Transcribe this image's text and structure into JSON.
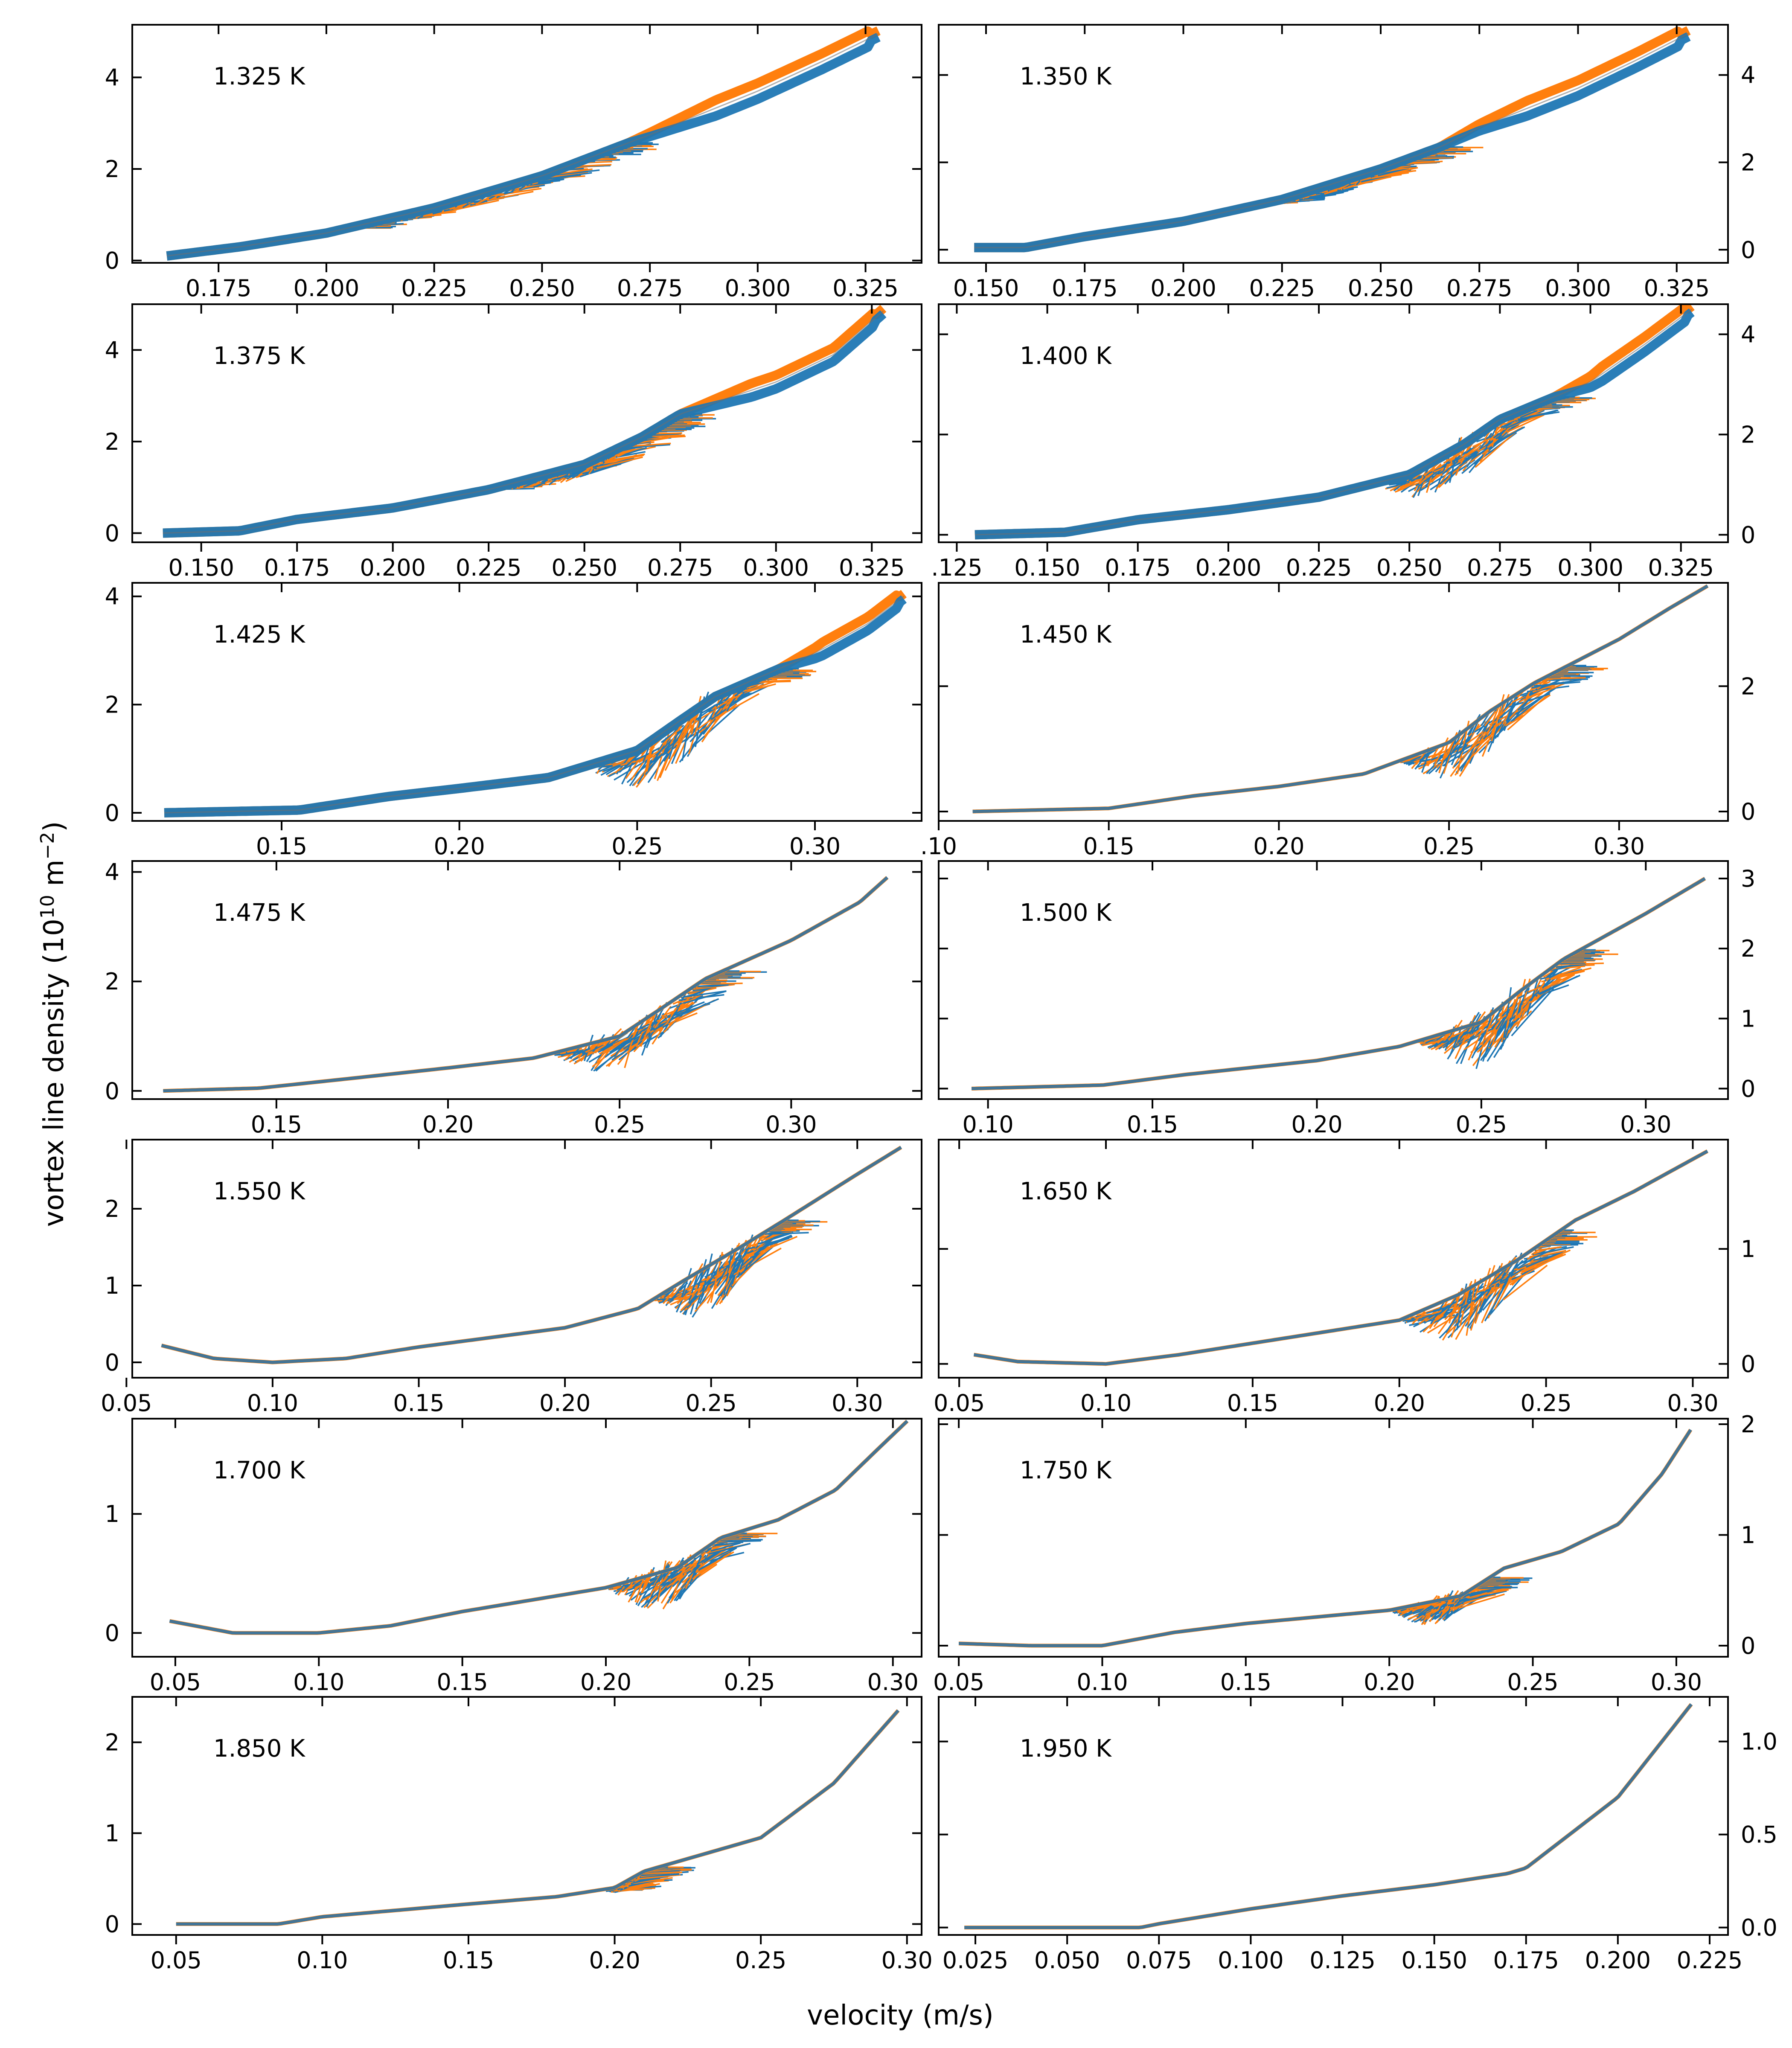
{
  "chart_data": {
    "type": "line",
    "xlabel": "velocity (m/s)",
    "ylabel_prefix": "vortex line density (10",
    "ylabel_exp": "10",
    "ylabel_unit": " m",
    "ylabel_unit_exp": "−2",
    "ylabel_suffix": ")",
    "series_colors": {
      "blue": "#1f77b4",
      "orange": "#ff7f0e"
    },
    "panels": [
      {
        "label": "1.325 K",
        "xlim": [
          0.155,
          0.338
        ],
        "ylim": [
          -0.05,
          5.15
        ],
        "xticks": [
          0.175,
          0.2,
          0.225,
          0.25,
          0.275,
          0.3,
          0.325
        ],
        "xtick_labels": [
          "0.175",
          "0.200",
          "0.225",
          "0.250",
          "0.275",
          "0.300",
          "0.325"
        ],
        "yticks": [
          0,
          2,
          4
        ],
        "ytick_labels": [
          "0",
          "2",
          "4"
        ],
        "curve": [
          [
            0.163,
            0.1
          ],
          [
            0.18,
            0.3
          ],
          [
            0.2,
            0.6
          ],
          [
            0.225,
            1.15
          ],
          [
            0.25,
            1.85
          ],
          [
            0.275,
            2.75
          ],
          [
            0.3,
            3.7
          ],
          [
            0.315,
            4.35
          ],
          [
            0.328,
            4.95
          ]
        ],
        "band_from": 0.205,
        "band_to": 0.27,
        "band_width": 0.28,
        "split_from": 0.27,
        "split": 0.35
      },
      {
        "label": "1.350 K",
        "xlim": [
          0.138,
          0.338
        ],
        "ylim": [
          -0.3,
          5.15
        ],
        "xticks": [
          0.15,
          0.175,
          0.2,
          0.225,
          0.25,
          0.275,
          0.3,
          0.325
        ],
        "xtick_labels": [
          "0.150",
          "0.175",
          "0.200",
          "0.225",
          "0.250",
          "0.275",
          "0.300",
          "0.325"
        ],
        "yticks": [
          0,
          2,
          4
        ],
        "ytick_labels": [
          "0",
          "2",
          "4"
        ],
        "curve": [
          [
            0.147,
            0.05
          ],
          [
            0.16,
            0.05
          ],
          [
            0.175,
            0.3
          ],
          [
            0.2,
            0.65
          ],
          [
            0.225,
            1.15
          ],
          [
            0.25,
            1.85
          ],
          [
            0.265,
            2.35
          ],
          [
            0.275,
            2.8
          ],
          [
            0.3,
            3.7
          ],
          [
            0.315,
            4.35
          ],
          [
            0.328,
            4.95
          ]
        ],
        "band_from": 0.22,
        "band_to": 0.265,
        "band_width": 0.3,
        "split_from": 0.265,
        "split": 0.35
      },
      {
        "label": "1.375 K",
        "xlim": [
          0.132,
          0.338
        ],
        "ylim": [
          -0.2,
          5.0
        ],
        "xticks": [
          0.15,
          0.175,
          0.2,
          0.225,
          0.25,
          0.275,
          0.3,
          0.325
        ],
        "xtick_labels": [
          "0.150",
          "0.175",
          "0.200",
          "0.225",
          "0.250",
          "0.275",
          "0.300",
          "0.325"
        ],
        "yticks": [
          0,
          2,
          4
        ],
        "ytick_labels": [
          "0",
          "2",
          "4"
        ],
        "curve": [
          [
            0.14,
            0.0
          ],
          [
            0.16,
            0.05
          ],
          [
            0.175,
            0.3
          ],
          [
            0.2,
            0.55
          ],
          [
            0.225,
            0.95
          ],
          [
            0.25,
            1.5
          ],
          [
            0.265,
            2.1
          ],
          [
            0.275,
            2.6
          ],
          [
            0.3,
            3.3
          ],
          [
            0.315,
            3.9
          ],
          [
            0.328,
            4.85
          ]
        ],
        "band_from": 0.225,
        "band_to": 0.275,
        "band_width": 0.4,
        "split_from": 0.275,
        "split": 0.3
      },
      {
        "label": "1.400 K",
        "xlim": [
          0.12,
          0.338
        ],
        "ylim": [
          -0.15,
          4.6
        ],
        "xticks": [
          0.125,
          0.15,
          0.175,
          0.2,
          0.225,
          0.25,
          0.275,
          0.3,
          0.325
        ],
        "xtick_labels": [
          ".125",
          "0.150",
          "0.175",
          "0.200",
          "0.225",
          "0.250",
          "0.275",
          "0.300",
          "0.325"
        ],
        "yticks": [
          0,
          2,
          4
        ],
        "ytick_labels": [
          "0",
          "2",
          "4"
        ],
        "curve": [
          [
            0.13,
            0.0
          ],
          [
            0.155,
            0.05
          ],
          [
            0.175,
            0.3
          ],
          [
            0.2,
            0.5
          ],
          [
            0.225,
            0.75
          ],
          [
            0.25,
            1.2
          ],
          [
            0.265,
            1.8
          ],
          [
            0.275,
            2.3
          ],
          [
            0.3,
            3.05
          ],
          [
            0.315,
            3.8
          ],
          [
            0.328,
            4.5
          ]
        ],
        "band_from": 0.24,
        "band_to": 0.29,
        "band_width": 1.0,
        "split_from": 0.29,
        "split": 0.3
      },
      {
        "label": "1.425 K",
        "xlim": [
          0.108,
          0.33
        ],
        "ylim": [
          -0.15,
          4.25
        ],
        "xticks": [
          0.15,
          0.2,
          0.25,
          0.3
        ],
        "xtick_labels": [
          "0.15",
          "0.20",
          "0.25",
          "0.30"
        ],
        "yticks": [
          0,
          2,
          4
        ],
        "ytick_labels": [
          "0",
          "2",
          "4"
        ],
        "curve": [
          [
            0.117,
            0.0
          ],
          [
            0.155,
            0.05
          ],
          [
            0.18,
            0.3
          ],
          [
            0.2,
            0.45
          ],
          [
            0.225,
            0.65
          ],
          [
            0.25,
            1.15
          ],
          [
            0.262,
            1.7
          ],
          [
            0.272,
            2.15
          ],
          [
            0.3,
            2.95
          ],
          [
            0.315,
            3.5
          ],
          [
            0.325,
            4.0
          ]
        ],
        "band_from": 0.235,
        "band_to": 0.29,
        "band_width": 1.2,
        "split_from": 0.29,
        "split": 0.25
      },
      {
        "label": "1.450 K",
        "xlim": [
          0.1,
          0.332
        ],
        "ylim": [
          -0.15,
          3.65
        ],
        "xticks": [
          0.1,
          0.15,
          0.2,
          0.25,
          0.3
        ],
        "xtick_labels": [
          ".10",
          "0.15",
          "0.20",
          "0.25",
          "0.30"
        ],
        "yticks": [
          0,
          2
        ],
        "ytick_labels": [
          "0",
          "2"
        ],
        "curve": [
          [
            0.11,
            0.0
          ],
          [
            0.15,
            0.05
          ],
          [
            0.175,
            0.25
          ],
          [
            0.2,
            0.4
          ],
          [
            0.225,
            0.6
          ],
          [
            0.25,
            1.1
          ],
          [
            0.262,
            1.6
          ],
          [
            0.275,
            2.05
          ],
          [
            0.3,
            2.75
          ],
          [
            0.315,
            3.25
          ],
          [
            0.326,
            3.6
          ]
        ],
        "band_from": 0.235,
        "band_to": 0.285,
        "band_width": 1.0,
        "split_from": 0,
        "split": 0
      },
      {
        "label": "1.475 K",
        "xlim": [
          0.108,
          0.338
        ],
        "ylim": [
          -0.15,
          4.2
        ],
        "xticks": [
          0.15,
          0.2,
          0.25,
          0.3
        ],
        "xtick_labels": [
          "0.15",
          "0.20",
          "0.25",
          "0.30"
        ],
        "yticks": [
          0,
          2,
          4
        ],
        "ytick_labels": [
          "0",
          "2",
          "4"
        ],
        "curve": [
          [
            0.117,
            0.0
          ],
          [
            0.145,
            0.05
          ],
          [
            0.175,
            0.25
          ],
          [
            0.2,
            0.42
          ],
          [
            0.225,
            0.6
          ],
          [
            0.25,
            1.0
          ],
          [
            0.262,
            1.5
          ],
          [
            0.275,
            2.05
          ],
          [
            0.3,
            2.75
          ],
          [
            0.32,
            3.45
          ],
          [
            0.328,
            3.9
          ]
        ],
        "band_from": 0.23,
        "band_to": 0.28,
        "band_width": 1.0,
        "split_from": 0,
        "split": 0
      },
      {
        "label": "1.500 K",
        "xlim": [
          0.085,
          0.325
        ],
        "ylim": [
          -0.15,
          3.25
        ],
        "xticks": [
          0.1,
          0.15,
          0.2,
          0.25,
          0.3
        ],
        "xtick_labels": [
          "0.10",
          "0.15",
          "0.20",
          "0.25",
          "0.30"
        ],
        "yticks": [
          0,
          1,
          2,
          3
        ],
        "ytick_labels": [
          "0",
          "1",
          "2",
          "3"
        ],
        "curve": [
          [
            0.095,
            0.0
          ],
          [
            0.135,
            0.05
          ],
          [
            0.16,
            0.2
          ],
          [
            0.2,
            0.4
          ],
          [
            0.225,
            0.6
          ],
          [
            0.25,
            0.95
          ],
          [
            0.262,
            1.4
          ],
          [
            0.275,
            1.85
          ],
          [
            0.3,
            2.5
          ],
          [
            0.318,
            3.0
          ]
        ],
        "band_from": 0.23,
        "band_to": 0.28,
        "band_width": 0.95,
        "split_from": 0,
        "split": 0
      },
      {
        "label": "1.550 K",
        "xlim": [
          0.052,
          0.322
        ],
        "ylim": [
          -0.2,
          2.9
        ],
        "xticks": [
          0.05,
          0.1,
          0.15,
          0.2,
          0.25,
          0.3
        ],
        "xtick_labels": [
          "0.05",
          "0.10",
          "0.15",
          "0.20",
          "0.25",
          "0.30"
        ],
        "yticks": [
          0,
          1,
          2
        ],
        "ytick_labels": [
          "0",
          "1",
          "2"
        ],
        "curve": [
          [
            0.062,
            0.22
          ],
          [
            0.08,
            0.05
          ],
          [
            0.1,
            0.0
          ],
          [
            0.125,
            0.05
          ],
          [
            0.15,
            0.2
          ],
          [
            0.2,
            0.45
          ],
          [
            0.225,
            0.7
          ],
          [
            0.24,
            1.05
          ],
          [
            0.26,
            1.5
          ],
          [
            0.275,
            1.85
          ],
          [
            0.3,
            2.45
          ],
          [
            0.315,
            2.8
          ]
        ],
        "band_from": 0.23,
        "band_to": 0.275,
        "band_width": 0.9,
        "split_from": 0,
        "split": 0
      },
      {
        "label": "1.650 K",
        "xlim": [
          0.043,
          0.312
        ],
        "ylim": [
          -0.12,
          1.95
        ],
        "xticks": [
          0.05,
          0.1,
          0.15,
          0.2,
          0.25,
          0.3
        ],
        "xtick_labels": [
          "0.05",
          "0.10",
          "0.15",
          "0.20",
          "0.25",
          "0.30"
        ],
        "yticks": [
          0,
          1
        ],
        "ytick_labels": [
          "0",
          "1"
        ],
        "curve": [
          [
            0.055,
            0.08
          ],
          [
            0.07,
            0.02
          ],
          [
            0.1,
            0.0
          ],
          [
            0.125,
            0.08
          ],
          [
            0.15,
            0.18
          ],
          [
            0.2,
            0.38
          ],
          [
            0.22,
            0.6
          ],
          [
            0.24,
            0.9
          ],
          [
            0.26,
            1.25
          ],
          [
            0.28,
            1.5
          ],
          [
            0.305,
            1.85
          ]
        ],
        "band_from": 0.2,
        "band_to": 0.255,
        "band_width": 0.6,
        "split_from": 0,
        "split": 0
      },
      {
        "label": "1.700 K",
        "xlim": [
          0.035,
          0.31
        ],
        "ylim": [
          -0.2,
          1.8
        ],
        "xticks": [
          0.05,
          0.1,
          0.15,
          0.2,
          0.25,
          0.3
        ],
        "xtick_labels": [
          "0.05",
          "0.10",
          "0.15",
          "0.20",
          "0.25",
          "0.30"
        ],
        "yticks": [
          0,
          1
        ],
        "ytick_labels": [
          "0",
          "1"
        ],
        "curve": [
          [
            0.048,
            0.1
          ],
          [
            0.07,
            0.0
          ],
          [
            0.1,
            0.0
          ],
          [
            0.125,
            0.06
          ],
          [
            0.15,
            0.18
          ],
          [
            0.2,
            0.38
          ],
          [
            0.225,
            0.55
          ],
          [
            0.24,
            0.8
          ],
          [
            0.26,
            0.95
          ],
          [
            0.28,
            1.2
          ],
          [
            0.295,
            1.55
          ],
          [
            0.305,
            1.78
          ]
        ],
        "band_from": 0.2,
        "band_to": 0.245,
        "band_width": 0.45,
        "split_from": 0,
        "split": 0
      },
      {
        "label": "1.750 K",
        "xlim": [
          0.043,
          0.318
        ],
        "ylim": [
          -0.1,
          2.05
        ],
        "xticks": [
          0.05,
          0.1,
          0.15,
          0.2,
          0.25,
          0.3
        ],
        "xtick_labels": [
          "0.05",
          "0.10",
          "0.15",
          "0.20",
          "0.25",
          "0.30"
        ],
        "yticks": [
          0,
          1,
          2
        ],
        "ytick_labels": [
          "0",
          "1",
          "2"
        ],
        "curve": [
          [
            0.05,
            0.02
          ],
          [
            0.075,
            0.0
          ],
          [
            0.1,
            0.0
          ],
          [
            0.125,
            0.12
          ],
          [
            0.15,
            0.2
          ],
          [
            0.2,
            0.32
          ],
          [
            0.225,
            0.45
          ],
          [
            0.24,
            0.7
          ],
          [
            0.26,
            0.85
          ],
          [
            0.28,
            1.1
          ],
          [
            0.295,
            1.55
          ],
          [
            0.305,
            1.95
          ]
        ],
        "band_from": 0.2,
        "band_to": 0.235,
        "band_width": 0.3,
        "split_from": 0,
        "split": 0
      },
      {
        "label": "1.850 K",
        "xlim": [
          0.035,
          0.305
        ],
        "ylim": [
          -0.12,
          2.5
        ],
        "xticks": [
          0.05,
          0.1,
          0.15,
          0.2,
          0.25,
          0.3
        ],
        "xtick_labels": [
          "0.05",
          "0.10",
          "0.15",
          "0.20",
          "0.25",
          "0.30"
        ],
        "yticks": [
          0,
          1,
          2
        ],
        "ytick_labels": [
          "0",
          "1",
          "2"
        ],
        "curve": [
          [
            0.05,
            0.0
          ],
          [
            0.085,
            0.0
          ],
          [
            0.1,
            0.08
          ],
          [
            0.15,
            0.22
          ],
          [
            0.18,
            0.3
          ],
          [
            0.2,
            0.4
          ],
          [
            0.21,
            0.58
          ],
          [
            0.25,
            0.95
          ],
          [
            0.275,
            1.55
          ],
          [
            0.297,
            2.35
          ]
        ],
        "band_from": 0.195,
        "band_to": 0.215,
        "band_width": 0.1,
        "split_from": 0,
        "split": 0
      },
      {
        "label": "1.950 K",
        "xlim": [
          0.015,
          0.23
        ],
        "ylim": [
          -0.04,
          1.24
        ],
        "xticks": [
          0.025,
          0.05,
          0.075,
          0.1,
          0.125,
          0.15,
          0.175,
          0.2,
          0.225
        ],
        "xtick_labels": [
          "0.025",
          "0.050",
          "0.075",
          "0.100",
          "0.125",
          "0.150",
          "0.175",
          "0.200",
          "0.225"
        ],
        "yticks": [
          0,
          0.5,
          1.0
        ],
        "ytick_labels": [
          "0.0",
          "0.5",
          "1.0"
        ],
        "curve": [
          [
            0.022,
            0.0
          ],
          [
            0.07,
            0.0
          ],
          [
            0.075,
            0.02
          ],
          [
            0.1,
            0.1
          ],
          [
            0.125,
            0.17
          ],
          [
            0.15,
            0.23
          ],
          [
            0.17,
            0.29
          ],
          [
            0.175,
            0.32
          ],
          [
            0.2,
            0.7
          ],
          [
            0.22,
            1.2
          ]
        ],
        "band_from": 0,
        "band_to": 0,
        "band_width": 0,
        "split_from": 0,
        "split": 0
      }
    ]
  }
}
